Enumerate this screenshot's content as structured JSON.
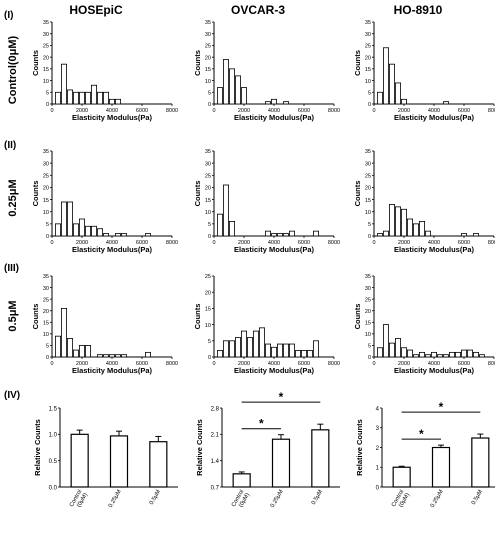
{
  "column_titles": [
    "HOSEpiC",
    "OVCAR-3",
    "HO-8910"
  ],
  "row_labels": [
    {
      "numeral": "(I)",
      "condition": "Control(0μM)"
    },
    {
      "numeral": "(II)",
      "condition": "0.25μM"
    },
    {
      "numeral": "(III)",
      "condition": "0.5μM"
    },
    {
      "numeral": "(IV)",
      "condition": ""
    }
  ],
  "chart_data": [
    {
      "type": "bar",
      "panel": "I-HOSEpiC",
      "xlabel": "Elasticity Modulus(Pa)",
      "ylabel": "Counts",
      "xlim": [
        0,
        8000
      ],
      "ylim": [
        0,
        35
      ],
      "bin_width": 400,
      "x": [
        400,
        800,
        1200,
        1600,
        2000,
        2400,
        2800,
        3200,
        3600,
        4000,
        4400,
        4800,
        5200,
        5600,
        6000,
        6400,
        6800,
        7200
      ],
      "values": [
        5,
        17,
        6,
        5,
        5,
        5,
        8,
        5,
        5,
        2,
        2,
        0,
        0,
        0,
        0,
        0,
        0,
        0
      ]
    },
    {
      "type": "bar",
      "panel": "I-OVCAR-3",
      "xlabel": "Elasticity Modulus(Pa)",
      "ylabel": "Counts",
      "xlim": [
        0,
        8000
      ],
      "ylim": [
        0,
        35
      ],
      "bin_width": 400,
      "x": [
        400,
        800,
        1200,
        1600,
        2000,
        2400,
        2800,
        3200,
        3600,
        4000,
        4400,
        4800,
        5200,
        5600,
        6000,
        6400,
        6800,
        7200
      ],
      "values": [
        7,
        19,
        15,
        12,
        7,
        0,
        0,
        0,
        1,
        2,
        0,
        1,
        0,
        0,
        0,
        0,
        0,
        0
      ]
    },
    {
      "type": "bar",
      "panel": "I-HO-8910",
      "xlabel": "Elasticity Modulus(Pa)",
      "ylabel": "Counts",
      "xlim": [
        0,
        8000
      ],
      "ylim": [
        0,
        35
      ],
      "bin_width": 400,
      "x": [
        400,
        800,
        1200,
        1600,
        2000,
        2400,
        2800,
        3200,
        3600,
        4000,
        4400,
        4800,
        5200,
        5600,
        6000,
        6400,
        6800,
        7200
      ],
      "values": [
        5,
        24,
        17,
        9,
        2,
        0,
        0,
        0,
        0,
        0,
        0,
        1,
        0,
        0,
        0,
        0,
        0,
        0
      ]
    },
    {
      "type": "bar",
      "panel": "II-HOSEpiC",
      "xlabel": "Elasticity Modulus(Pa)",
      "ylabel": "Counts",
      "xlim": [
        0,
        8000
      ],
      "ylim": [
        0,
        35
      ],
      "bin_width": 400,
      "x": [
        400,
        800,
        1200,
        1600,
        2000,
        2400,
        2800,
        3200,
        3600,
        4000,
        4400,
        4800,
        5200,
        5600,
        6000,
        6400,
        6800,
        7200
      ],
      "values": [
        5,
        14,
        14,
        5,
        7,
        4,
        4,
        3,
        1,
        0,
        1,
        1,
        0,
        0,
        0,
        1,
        0,
        0
      ]
    },
    {
      "type": "bar",
      "panel": "II-OVCAR-3",
      "xlabel": "Elasticity Modulus(Pa)",
      "ylabel": "Counts",
      "xlim": [
        0,
        8000
      ],
      "ylim": [
        0,
        35
      ],
      "bin_width": 400,
      "x": [
        400,
        800,
        1200,
        1600,
        2000,
        2400,
        2800,
        3200,
        3600,
        4000,
        4400,
        4800,
        5200,
        5600,
        6000,
        6400,
        6800,
        7200
      ],
      "values": [
        9,
        21,
        6,
        0,
        0,
        0,
        0,
        0,
        2,
        1,
        1,
        1,
        2,
        0,
        0,
        0,
        2,
        0
      ]
    },
    {
      "type": "bar",
      "panel": "II-HO-8910",
      "xlabel": "Elasticity Modulus(Pa)",
      "ylabel": "Counts",
      "xlim": [
        0,
        8000
      ],
      "ylim": [
        0,
        35
      ],
      "bin_width": 400,
      "x": [
        400,
        800,
        1200,
        1600,
        2000,
        2400,
        2800,
        3200,
        3600,
        4000,
        4400,
        4800,
        5200,
        5600,
        6000,
        6400,
        6800,
        7200
      ],
      "values": [
        1,
        2,
        13,
        12,
        11,
        7,
        5,
        6,
        2,
        0,
        0,
        0,
        0,
        0,
        1,
        0,
        1,
        0
      ]
    },
    {
      "type": "bar",
      "panel": "III-HOSEpiC",
      "xlabel": "Elasticity Modulus(Pa)",
      "ylabel": "Counts",
      "xlim": [
        0,
        8000
      ],
      "ylim": [
        0,
        35
      ],
      "bin_width": 400,
      "x": [
        400,
        800,
        1200,
        1600,
        2000,
        2400,
        2800,
        3200,
        3600,
        4000,
        4400,
        4800,
        5200,
        5600,
        6000,
        6400,
        6800,
        7200
      ],
      "values": [
        9,
        21,
        8,
        3,
        5,
        5,
        0,
        1,
        1,
        1,
        1,
        1,
        0,
        0,
        0,
        2,
        0,
        0
      ]
    },
    {
      "type": "bar",
      "panel": "III-OVCAR-3",
      "xlabel": "Elasticity Modulus(Pa)",
      "ylabel": "Counts",
      "xlim": [
        0,
        8000
      ],
      "ylim": [
        0,
        25
      ],
      "bin_width": 400,
      "x": [
        400,
        800,
        1200,
        1600,
        2000,
        2400,
        2800,
        3200,
        3600,
        4000,
        4400,
        4800,
        5200,
        5600,
        6000,
        6400,
        6800,
        7200
      ],
      "values": [
        2,
        5,
        5,
        6,
        8,
        6,
        8,
        9,
        4,
        3,
        4,
        4,
        4,
        2,
        2,
        2,
        5,
        0
      ]
    },
    {
      "type": "bar",
      "panel": "III-HO-8910",
      "xlabel": "Elasticity Modulus(Pa)",
      "ylabel": "Counts",
      "xlim": [
        0,
        8000
      ],
      "ylim": [
        0,
        35
      ],
      "bin_width": 400,
      "x": [
        400,
        800,
        1200,
        1600,
        2000,
        2400,
        2800,
        3200,
        3600,
        4000,
        4400,
        4800,
        5200,
        5600,
        6000,
        6400,
        6800,
        7200
      ],
      "values": [
        4,
        14,
        6,
        8,
        4,
        3,
        1,
        2,
        1,
        2,
        1,
        1,
        2,
        2,
        3,
        3,
        2,
        1
      ]
    },
    {
      "type": "bar",
      "panel": "IV-HOSEpiC",
      "ylabel": "Relative Counts",
      "ylim": [
        0,
        1.5
      ],
      "yticks": [
        0.0,
        0.5,
        1.0,
        1.5
      ],
      "ytick_labels": [
        "0.0",
        "0.5",
        "1.0",
        "1.5"
      ],
      "categories": [
        "Control\n(0μM)",
        "0.25μM",
        "0.5μM"
      ],
      "values": [
        1.0,
        0.97,
        0.86
      ],
      "errors": [
        0.08,
        0.09,
        0.1
      ],
      "significance": []
    },
    {
      "type": "bar",
      "panel": "IV-OVCAR-3",
      "ylabel": "Relative Counts",
      "ylim": [
        0.7,
        2.8
      ],
      "yticks": [
        0.7,
        1.4,
        2.1,
        2.8
      ],
      "ytick_labels": [
        "0.7",
        "1.4",
        "2.1",
        "2.8"
      ],
      "categories": [
        "Control\n(0μM)",
        "0.25μM",
        "0.5μM"
      ],
      "values": [
        1.05,
        1.97,
        2.22
      ],
      "errors": [
        0.05,
        0.12,
        0.15
      ],
      "significance": [
        {
          "from": 0,
          "to": 1,
          "label": "*"
        },
        {
          "from": 0,
          "to": 2,
          "label": "*"
        }
      ]
    },
    {
      "type": "bar",
      "panel": "IV-HO-8910",
      "ylabel": "Relative Counts",
      "ylim": [
        0,
        4
      ],
      "yticks": [
        0,
        1,
        2,
        3,
        4
      ],
      "ytick_labels": [
        "0",
        "1",
        "2",
        "3",
        "4"
      ],
      "categories": [
        "Control\n(0μM)",
        "0.25μM",
        "0.5μM"
      ],
      "values": [
        1.0,
        2.0,
        2.48
      ],
      "errors": [
        0.05,
        0.12,
        0.2
      ],
      "significance": [
        {
          "from": 0,
          "to": 1,
          "label": "*"
        },
        {
          "from": 0,
          "to": 2,
          "label": "*"
        }
      ]
    }
  ]
}
